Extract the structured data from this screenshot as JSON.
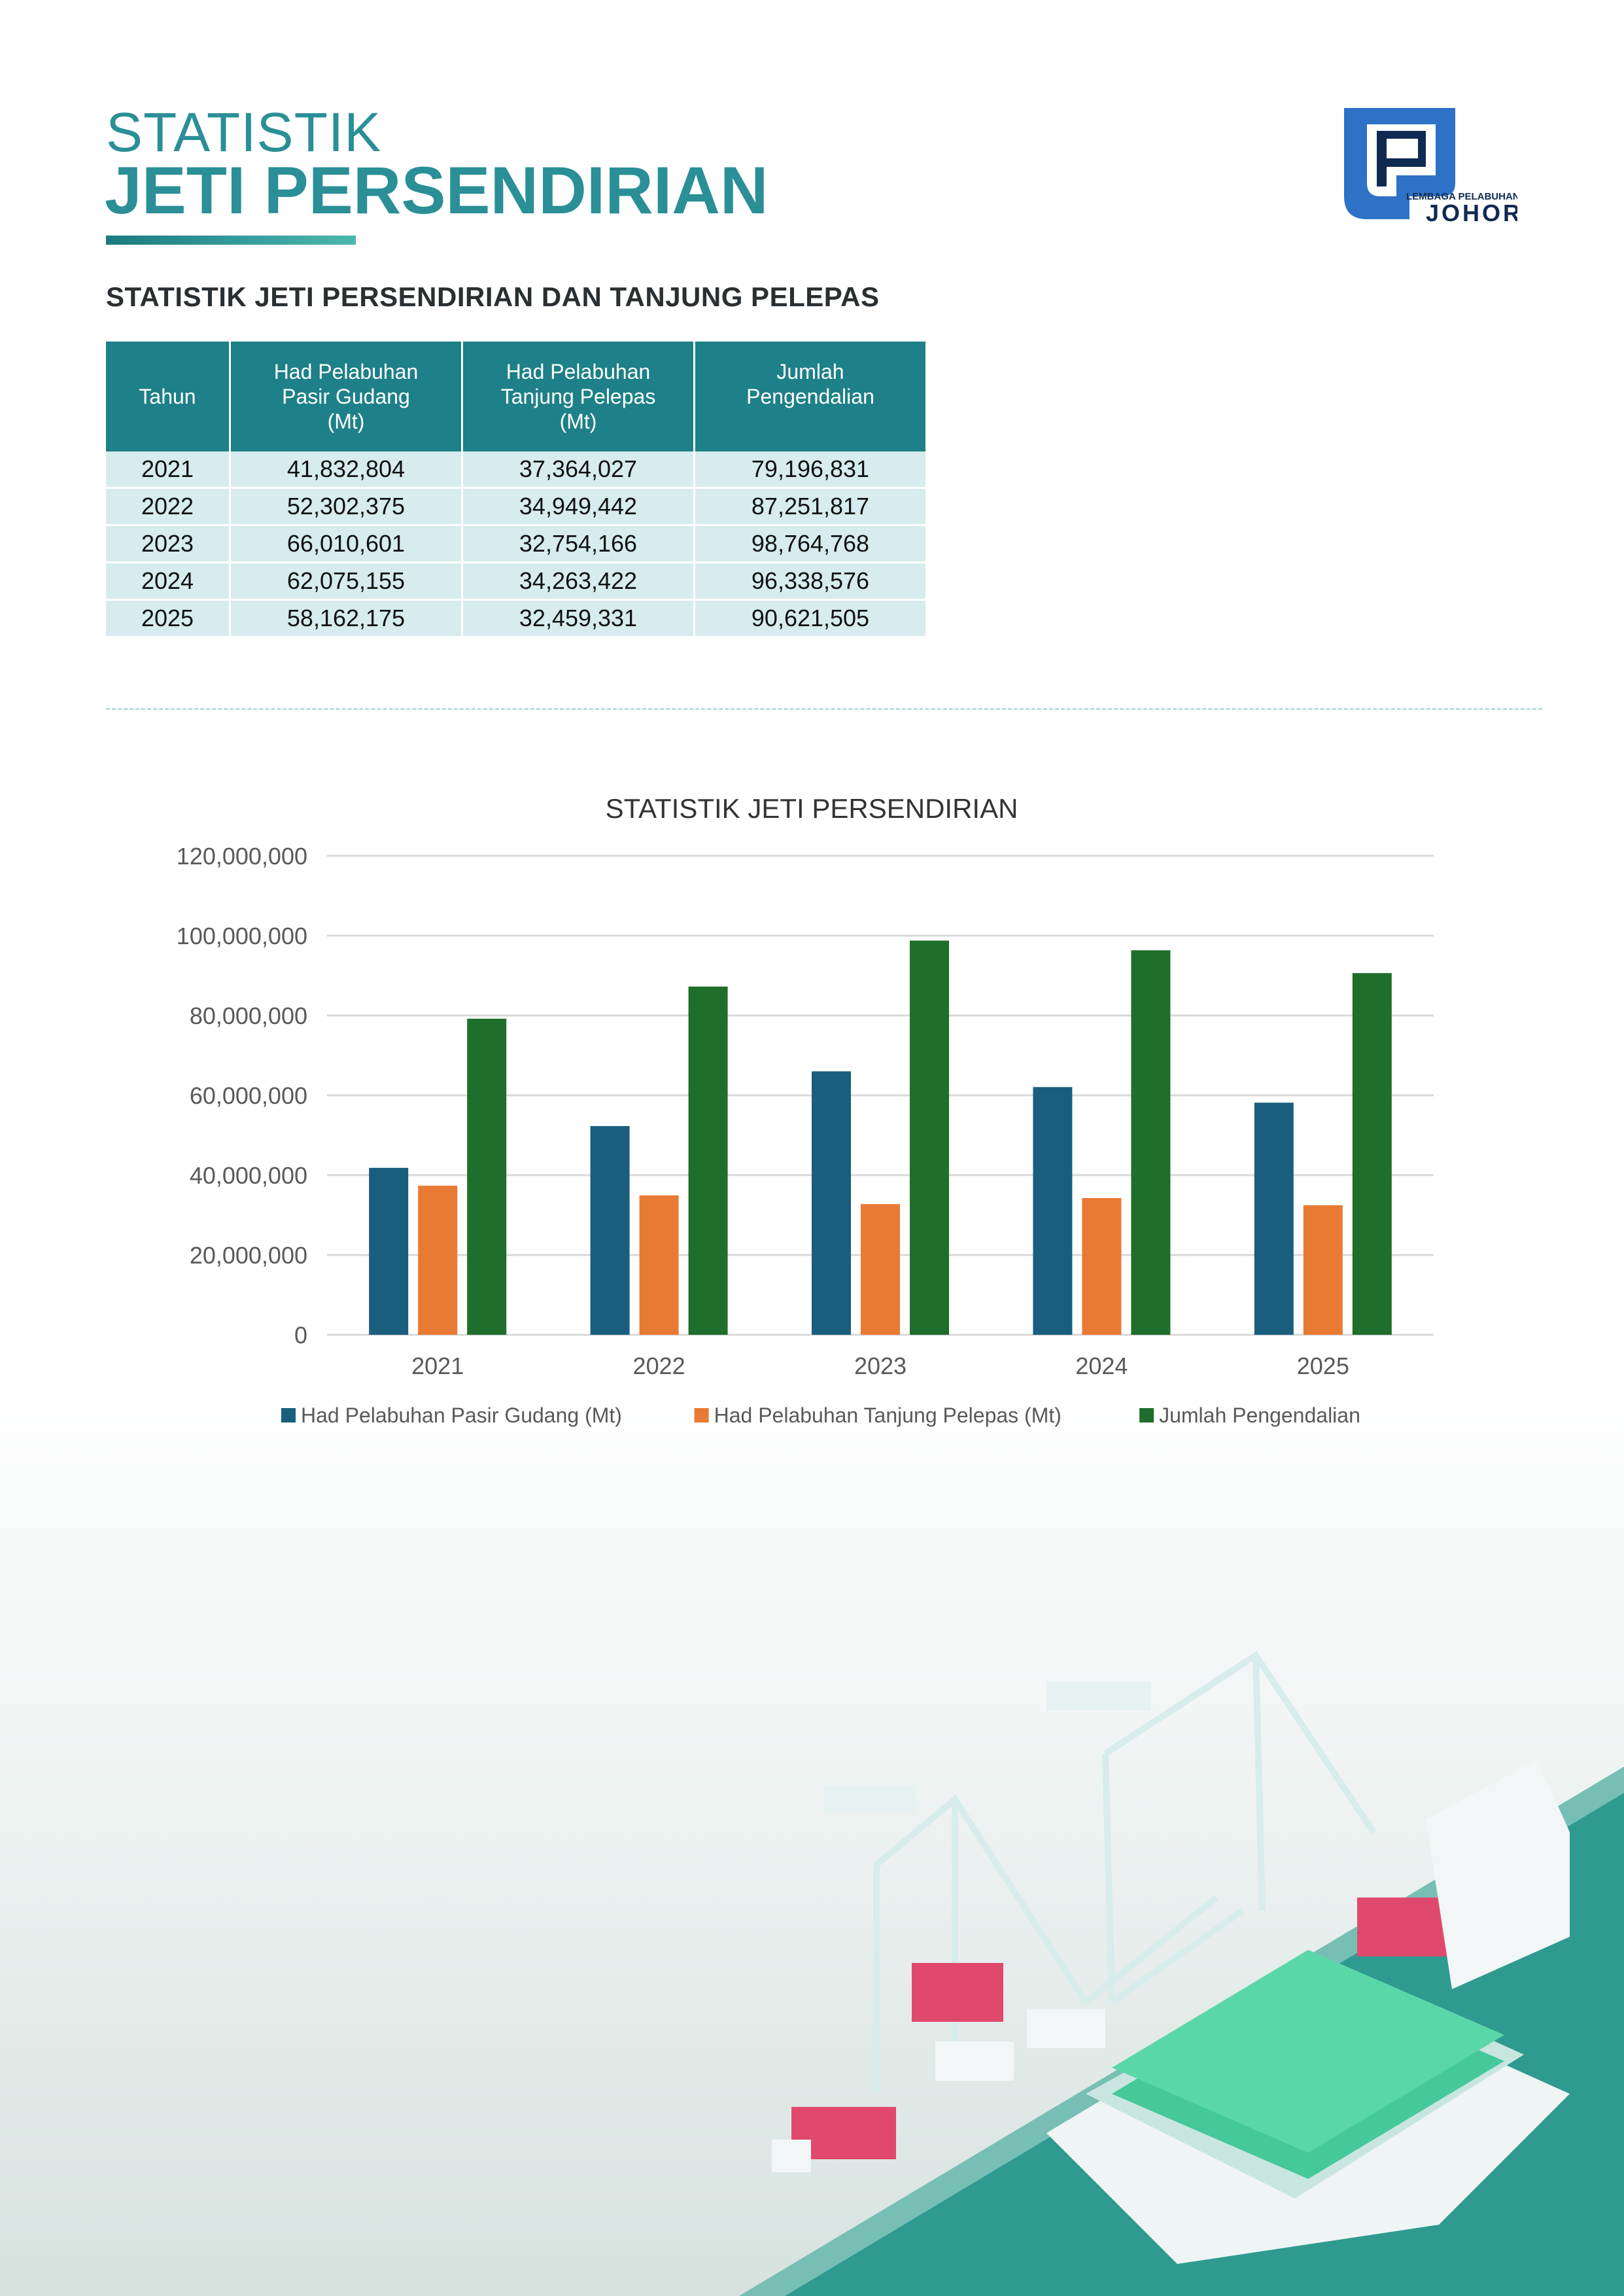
{
  "header": {
    "title_line1": "STATISTIK",
    "title_line2": "JETI PERSENDIRIAN",
    "logo_text_small": "LEMBAGA PELABUHAN",
    "logo_text_large": "JOHOR"
  },
  "table": {
    "heading": "STATISTIK JETI PERSENDIRIAN DAN TANJUNG PELEPAS",
    "columns": [
      "Tahun",
      [
        "Had Pelabuhan",
        "Pasir Gudang",
        "(Mt)"
      ],
      [
        "Had Pelabuhan",
        "Tanjung Pelepas",
        "(Mt)"
      ],
      [
        "Jumlah",
        "Pengendalian"
      ]
    ],
    "rows": [
      [
        "2021",
        "41,832,804",
        "37,364,027",
        "79,196,831"
      ],
      [
        "2022",
        "52,302,375",
        "34,949,442",
        "87,251,817"
      ],
      [
        "2023",
        "66,010,601",
        "32,754,166",
        "98,764,768"
      ],
      [
        "2024",
        "62,075,155",
        "34,263,422",
        "96,338,576"
      ],
      [
        "2025",
        "58,162,175",
        "32,459,331",
        "90,621,505"
      ]
    ]
  },
  "chart_data": {
    "type": "bar",
    "title": "STATISTIK JETI PERSENDIRIAN",
    "categories": [
      "2021",
      "2022",
      "2023",
      "2024",
      "2025"
    ],
    "series": [
      {
        "name": "Had Pelabuhan  Pasir Gudang (Mt)",
        "color": "#1a5e7e",
        "values": [
          41832804,
          52302375,
          66010601,
          62075155,
          58162175
        ]
      },
      {
        "name": "Had Pelabuhan  Tanjung Pelepas (Mt)",
        "color": "#e97a33",
        "values": [
          37364027,
          34949442,
          32754166,
          34263422,
          32459331
        ]
      },
      {
        "name": "Jumlah Pengendalian",
        "color": "#1e6e2c",
        "values": [
          79196831,
          87251817,
          98764768,
          96338576,
          90621505
        ]
      }
    ],
    "y_ticks": [
      "0",
      "20,000,000",
      "40,000,000",
      "60,000,000",
      "80,000,000",
      "100,000,000",
      "120,000,000"
    ],
    "ylim": [
      0,
      120000000
    ],
    "grid": true,
    "legend_position": "bottom"
  }
}
